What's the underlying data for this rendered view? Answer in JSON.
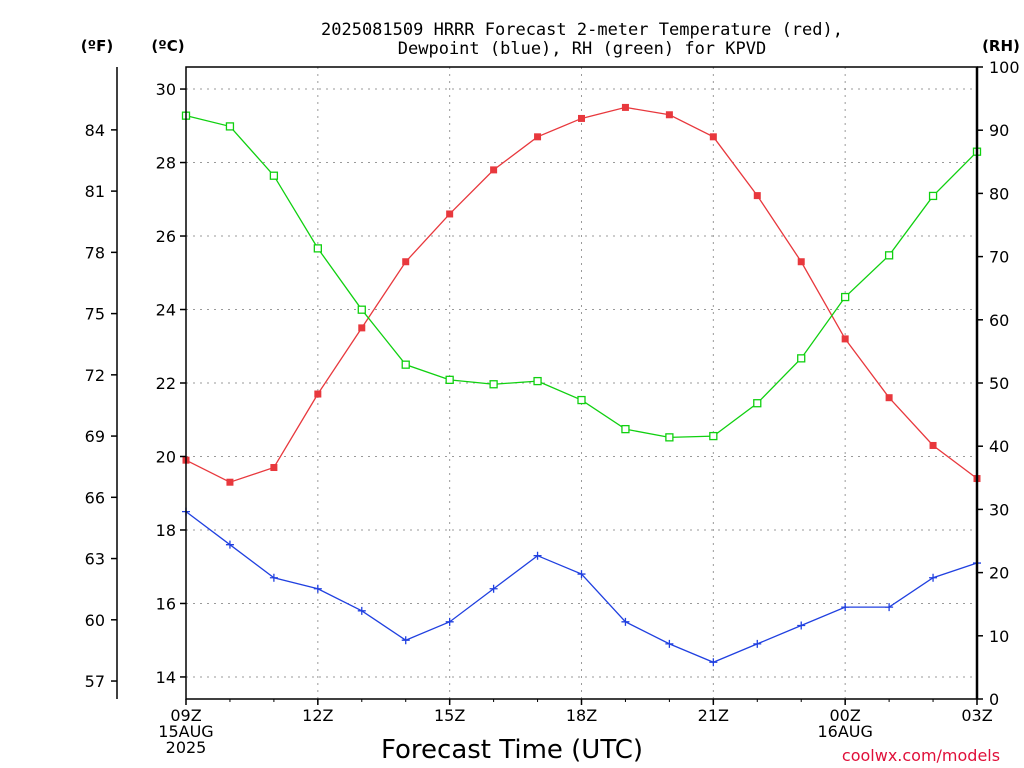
{
  "chart_data": {
    "type": "line",
    "title": "2025081509 HRRR Forecast 2-meter Temperature (red),",
    "subtitle": "Dewpoint (blue), RH (green) for KPVD",
    "xlabel": "Forecast Time (UTC)",
    "credit": "coolwx.com/models",
    "x_hours": [
      0,
      1,
      2,
      3,
      4,
      5,
      6,
      7,
      8,
      9,
      10,
      11,
      12,
      13,
      14,
      15,
      16,
      17,
      18
    ],
    "x_ticks": [
      {
        "hour": 0,
        "lines": [
          "09Z",
          "15AUG",
          "2025"
        ]
      },
      {
        "hour": 3,
        "lines": [
          "12Z"
        ]
      },
      {
        "hour": 6,
        "lines": [
          "15Z"
        ]
      },
      {
        "hour": 9,
        "lines": [
          "18Z"
        ]
      },
      {
        "hour": 12,
        "lines": [
          "21Z"
        ]
      },
      {
        "hour": 15,
        "lines": [
          "00Z",
          "16AUG"
        ]
      },
      {
        "hour": 18,
        "lines": [
          "03Z"
        ]
      }
    ],
    "xlim": [
      0,
      18
    ],
    "axes": {
      "celsius": {
        "label": "(ºC)",
        "ylim": [
          13.4,
          30.6
        ],
        "ticks": [
          14,
          16,
          18,
          20,
          22,
          24,
          26,
          28,
          30
        ]
      },
      "fahrenheit": {
        "label": "(ºF)",
        "ticks": [
          57,
          60,
          63,
          66,
          69,
          72,
          75,
          78,
          81,
          84
        ]
      },
      "rh": {
        "label": "(RH)",
        "ylim": [
          0,
          100
        ],
        "ticks": [
          0,
          10,
          20,
          30,
          40,
          50,
          60,
          70,
          80,
          90,
          100
        ]
      }
    },
    "grid": true,
    "series": [
      {
        "name": "Temperature",
        "axis": "celsius",
        "color": "#e8383d",
        "marker": "filled-square",
        "values": [
          19.9,
          19.3,
          19.7,
          21.7,
          23.5,
          25.3,
          26.6,
          27.8,
          28.7,
          29.2,
          29.5,
          29.3,
          28.7,
          27.1,
          25.3,
          23.2,
          21.6,
          20.3,
          19.4
        ]
      },
      {
        "name": "Dewpoint",
        "axis": "celsius",
        "color": "#2040e0",
        "marker": "plus",
        "values": [
          18.5,
          17.6,
          16.7,
          16.4,
          15.8,
          15.0,
          15.5,
          16.4,
          17.3,
          16.8,
          15.5,
          14.9,
          14.4,
          14.9,
          15.4,
          15.9,
          15.9,
          16.7,
          17.1
        ]
      },
      {
        "name": "RH",
        "axis": "rh",
        "color": "#10d010",
        "marker": "open-square",
        "values": [
          92.3,
          90.6,
          82.8,
          71.3,
          61.6,
          52.9,
          50.5,
          49.8,
          50.3,
          47.3,
          42.7,
          41.4,
          41.6,
          46.8,
          53.9,
          63.6,
          70.2,
          79.6,
          86.6
        ]
      }
    ]
  }
}
